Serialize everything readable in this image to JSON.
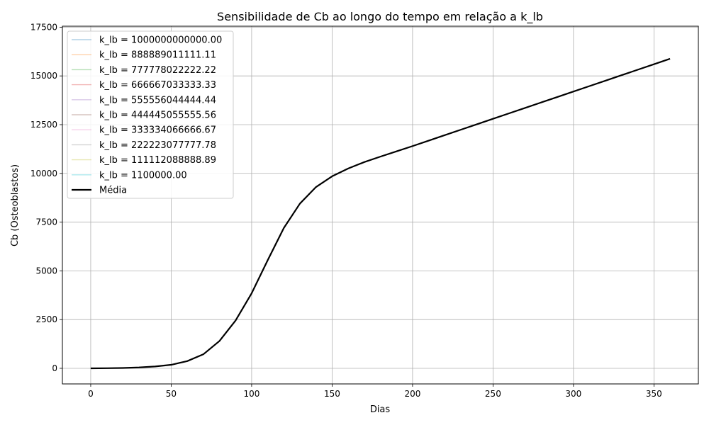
{
  "chart_data": {
    "type": "line",
    "title": "Sensibilidade de Cb ao longo do tempo em relação a k_lb",
    "xlabel": "Dias",
    "ylabel": "Cb (Osteoblastos)",
    "xlim": [
      -17.6,
      377.6
    ],
    "ylim": [
      -800,
      17550
    ],
    "xticks": [
      0,
      50,
      100,
      150,
      200,
      250,
      300,
      350
    ],
    "yticks": [
      0,
      2500,
      5000,
      7500,
      10000,
      12500,
      15000,
      17500
    ],
    "grid": true,
    "legend_position": "top-left",
    "x": [
      0,
      10,
      20,
      30,
      40,
      50,
      60,
      70,
      80,
      90,
      100,
      110,
      120,
      130,
      140,
      150,
      160,
      170,
      180,
      190,
      200,
      210,
      220,
      230,
      240,
      250,
      260,
      270,
      280,
      290,
      300,
      310,
      320,
      330,
      340,
      350,
      360
    ],
    "series": [
      {
        "name": "k_lb = 1000000000000.00",
        "color": "#1f77b4",
        "alpha": 0.35,
        "width": 1.4,
        "values": [
          0,
          6,
          18,
          45,
          95,
          180,
          370,
          720,
          1400,
          2450,
          3850,
          5550,
          7200,
          8450,
          9300,
          9850,
          10250,
          10580,
          10860,
          11130,
          11400,
          11680,
          11960,
          12240,
          12520,
          12800,
          13080,
          13360,
          13640,
          13920,
          14200,
          14480,
          14760,
          15040,
          15320,
          15600,
          15880
        ]
      },
      {
        "name": "k_lb = 888889011111.11",
        "color": "#ff7f0e",
        "alpha": 0.35,
        "width": 1.4,
        "values": [
          0,
          6,
          18,
          45,
          95,
          180,
          370,
          720,
          1400,
          2450,
          3850,
          5550,
          7200,
          8450,
          9300,
          9850,
          10250,
          10580,
          10860,
          11130,
          11400,
          11680,
          11960,
          12240,
          12520,
          12800,
          13080,
          13360,
          13640,
          13920,
          14200,
          14480,
          14760,
          15040,
          15320,
          15600,
          15880
        ]
      },
      {
        "name": "k_lb = 777778022222.22",
        "color": "#2ca02c",
        "alpha": 0.35,
        "width": 1.4,
        "values": [
          0,
          6,
          18,
          45,
          95,
          180,
          370,
          720,
          1400,
          2450,
          3850,
          5550,
          7200,
          8450,
          9300,
          9850,
          10250,
          10580,
          10860,
          11130,
          11400,
          11680,
          11960,
          12240,
          12520,
          12800,
          13080,
          13360,
          13640,
          13920,
          14200,
          14480,
          14760,
          15040,
          15320,
          15600,
          15880
        ]
      },
      {
        "name": "k_lb = 666667033333.33",
        "color": "#d62728",
        "alpha": 0.35,
        "width": 1.4,
        "values": [
          0,
          6,
          18,
          45,
          95,
          180,
          370,
          720,
          1400,
          2450,
          3850,
          5550,
          7200,
          8450,
          9300,
          9850,
          10250,
          10580,
          10860,
          11130,
          11400,
          11680,
          11960,
          12240,
          12520,
          12800,
          13080,
          13360,
          13640,
          13920,
          14200,
          14480,
          14760,
          15040,
          15320,
          15600,
          15880
        ]
      },
      {
        "name": "k_lb = 555556044444.44",
        "color": "#9467bd",
        "alpha": 0.35,
        "width": 1.4,
        "values": [
          0,
          6,
          18,
          45,
          95,
          180,
          370,
          720,
          1400,
          2450,
          3850,
          5550,
          7200,
          8450,
          9300,
          9850,
          10250,
          10580,
          10860,
          11130,
          11400,
          11680,
          11960,
          12240,
          12520,
          12800,
          13080,
          13360,
          13640,
          13920,
          14200,
          14480,
          14760,
          15040,
          15320,
          15600,
          15880
        ]
      },
      {
        "name": "k_lb = 444445055555.56",
        "color": "#8c564b",
        "alpha": 0.35,
        "width": 1.4,
        "values": [
          0,
          6,
          18,
          45,
          95,
          180,
          370,
          720,
          1400,
          2450,
          3850,
          5550,
          7200,
          8450,
          9300,
          9850,
          10250,
          10580,
          10860,
          11130,
          11400,
          11680,
          11960,
          12240,
          12520,
          12800,
          13080,
          13360,
          13640,
          13920,
          14200,
          14480,
          14760,
          15040,
          15320,
          15600,
          15880
        ]
      },
      {
        "name": "k_lb = 333334066666.67",
        "color": "#e377c2",
        "alpha": 0.35,
        "width": 1.4,
        "values": [
          0,
          6,
          18,
          45,
          95,
          180,
          370,
          720,
          1400,
          2450,
          3850,
          5550,
          7200,
          8450,
          9300,
          9850,
          10250,
          10580,
          10860,
          11130,
          11400,
          11680,
          11960,
          12240,
          12520,
          12800,
          13080,
          13360,
          13640,
          13920,
          14200,
          14480,
          14760,
          15040,
          15320,
          15600,
          15880
        ]
      },
      {
        "name": "k_lb = 222223077777.78",
        "color": "#7f7f7f",
        "alpha": 0.35,
        "width": 1.4,
        "values": [
          0,
          6,
          18,
          45,
          95,
          180,
          370,
          720,
          1400,
          2450,
          3850,
          5550,
          7200,
          8450,
          9300,
          9850,
          10250,
          10580,
          10860,
          11130,
          11400,
          11680,
          11960,
          12240,
          12520,
          12800,
          13080,
          13360,
          13640,
          13920,
          14200,
          14480,
          14760,
          15040,
          15320,
          15600,
          15880
        ]
      },
      {
        "name": "k_lb = 111112088888.89",
        "color": "#bcbd22",
        "alpha": 0.35,
        "width": 1.4,
        "values": [
          0,
          6,
          18,
          45,
          95,
          180,
          370,
          720,
          1400,
          2450,
          3850,
          5550,
          7200,
          8450,
          9300,
          9850,
          10250,
          10580,
          10860,
          11130,
          11400,
          11680,
          11960,
          12240,
          12520,
          12800,
          13080,
          13360,
          13640,
          13920,
          14200,
          14480,
          14760,
          15040,
          15320,
          15600,
          15880
        ]
      },
      {
        "name": "k_lb = 1100000.00",
        "color": "#17becf",
        "alpha": 0.35,
        "width": 1.4,
        "values": [
          0,
          6,
          18,
          45,
          95,
          180,
          370,
          720,
          1400,
          2450,
          3850,
          5550,
          7200,
          8450,
          9300,
          9850,
          10250,
          10580,
          10860,
          11130,
          11400,
          11680,
          11960,
          12240,
          12520,
          12800,
          13080,
          13360,
          13640,
          13920,
          14200,
          14480,
          14760,
          15040,
          15320,
          15600,
          15880
        ]
      },
      {
        "name": "Média",
        "color": "#000000",
        "alpha": 1,
        "width": 2.2,
        "values": [
          0,
          6,
          18,
          45,
          95,
          180,
          370,
          720,
          1400,
          2450,
          3850,
          5550,
          7200,
          8450,
          9300,
          9850,
          10250,
          10580,
          10860,
          11130,
          11400,
          11680,
          11960,
          12240,
          12520,
          12800,
          13080,
          13360,
          13640,
          13920,
          14200,
          14480,
          14760,
          15040,
          15320,
          15600,
          15880
        ]
      }
    ]
  }
}
